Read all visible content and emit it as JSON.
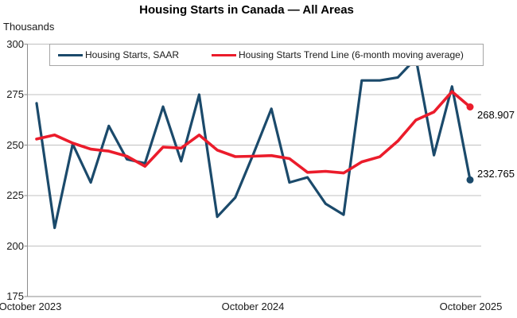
{
  "title": "Housing Starts in Canada — All Areas",
  "y_axis_unit": "Thousands",
  "legend": {
    "saar_label": "Housing Starts, SAAR",
    "trend_label": "Housing Starts Trend Line (6-month moving average)"
  },
  "end_labels": {
    "trend": "268.907",
    "saar": "232.765"
  },
  "colors": {
    "saar_line": "#1b4a6b",
    "trend_line": "#eb1c2b",
    "gridline": "#c0c0c0",
    "axis": "#8c8c8c",
    "text": "#1a1a1a"
  },
  "chart_data": {
    "type": "line",
    "x": [
      "Oct 2023",
      "Nov 2023",
      "Dec 2023",
      "Jan 2024",
      "Feb 2024",
      "Mar 2024",
      "Apr 2024",
      "May 2024",
      "Jun 2024",
      "Jul 2024",
      "Aug 2024",
      "Sep 2024",
      "Oct 2024",
      "Nov 2024",
      "Dec 2024",
      "Jan 2025",
      "Feb 2025",
      "Mar 2025",
      "Apr 2025",
      "May 2025",
      "Jun 2025",
      "Jul 2025",
      "Aug 2025",
      "Sep 2025",
      "Oct 2025"
    ],
    "x_tick_labels": [
      "October 2023",
      "October 2024",
      "October 2025"
    ],
    "y_ticks": [
      300,
      275,
      250,
      225,
      200,
      175
    ],
    "ylim": [
      175,
      300
    ],
    "grid": "horizontal",
    "legend_position": "top",
    "series": [
      {
        "name": "Housing Starts, SAAR",
        "color": "#1b4a6b",
        "values": [
          270.7,
          209,
          250.5,
          231.5,
          259.5,
          243,
          241,
          269,
          242,
          275,
          214.5,
          224,
          245.5,
          268,
          231.5,
          234,
          221,
          215.5,
          282,
          282,
          283.5,
          293,
          245,
          279,
          232.765
        ]
      },
      {
        "name": "Housing Starts Trend Line (6-month moving average)",
        "color": "#eb1c2b",
        "values": [
          253,
          255,
          251,
          248,
          247,
          244.5,
          239.5,
          249,
          248.5,
          255,
          247.5,
          244.3,
          244.5,
          244.8,
          243.3,
          236.5,
          237,
          236.2,
          241.7,
          244.2,
          252,
          262.4,
          266.4,
          276.5,
          268.907
        ]
      }
    ]
  }
}
